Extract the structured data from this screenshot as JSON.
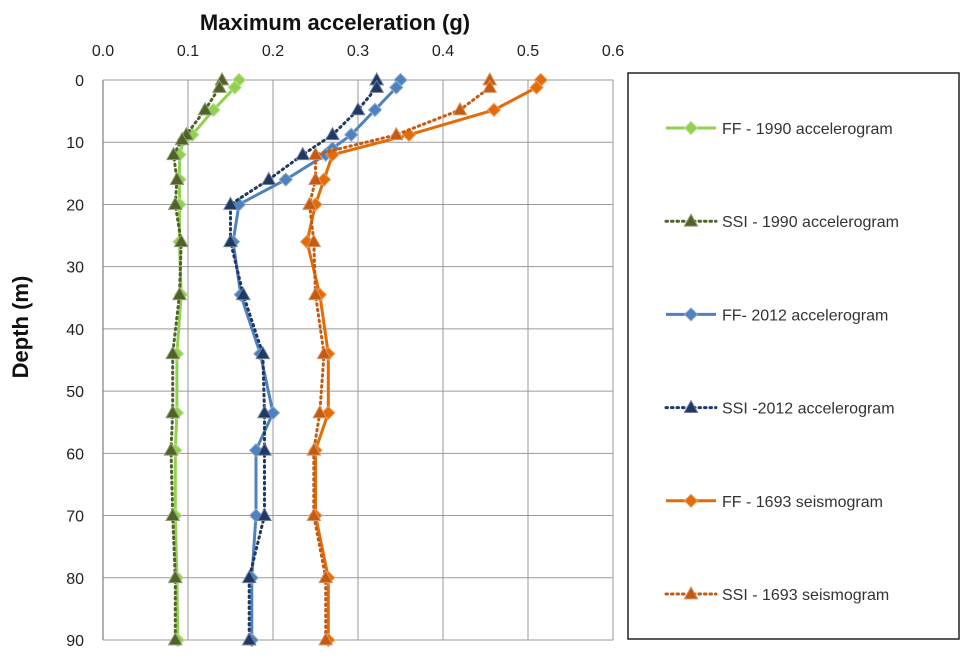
{
  "chart_data": {
    "type": "line",
    "title": "",
    "xlabel": "Maximum acceleration (g)",
    "ylabel": "Depth (m)",
    "xlim": [
      0,
      0.6
    ],
    "ylim": [
      0,
      90
    ],
    "y_inverted": true,
    "x_axis_position": "top",
    "x_ticks": [
      "0.0",
      "0.1",
      "0.2",
      "0.3",
      "0.4",
      "0.5",
      "0.6"
    ],
    "y_ticks": [
      "0",
      "10",
      "20",
      "30",
      "40",
      "50",
      "60",
      "70",
      "80",
      "90"
    ],
    "grid": true,
    "legend_position": "right",
    "series": [
      {
        "name": "FF - 1990 accelerogram",
        "color": "#92d050",
        "line": "solid",
        "marker": "diamond",
        "points": [
          [
            0.16,
            0
          ],
          [
            0.155,
            1.2
          ],
          [
            0.13,
            4.8
          ],
          [
            0.105,
            8.8
          ],
          [
            0.095,
            9.6
          ],
          [
            0.09,
            12
          ],
          [
            0.09,
            16
          ],
          [
            0.09,
            20
          ],
          [
            0.09,
            26
          ],
          [
            0.092,
            34.5
          ],
          [
            0.087,
            44
          ],
          [
            0.087,
            53.5
          ],
          [
            0.085,
            59.5
          ],
          [
            0.085,
            70
          ],
          [
            0.087,
            80
          ],
          [
            0.088,
            90
          ]
        ]
      },
      {
        "name": "SSI - 1990 accelerogram",
        "color": "#4f6228",
        "line": "dotted",
        "marker": "triangle",
        "points": [
          [
            0.14,
            0
          ],
          [
            0.137,
            1.2
          ],
          [
            0.12,
            4.8
          ],
          [
            0.098,
            8.8
          ],
          [
            0.093,
            9.6
          ],
          [
            0.083,
            12
          ],
          [
            0.087,
            16
          ],
          [
            0.085,
            20
          ],
          [
            0.092,
            26
          ],
          [
            0.09,
            34.5
          ],
          [
            0.082,
            44
          ],
          [
            0.082,
            53.5
          ],
          [
            0.08,
            59.5
          ],
          [
            0.082,
            70
          ],
          [
            0.085,
            80
          ],
          [
            0.085,
            90
          ]
        ]
      },
      {
        "name": "FF- 2012 accelerogram",
        "color": "#4f81bd",
        "line": "solid",
        "marker": "diamond",
        "points": [
          [
            0.35,
            0
          ],
          [
            0.345,
            1.2
          ],
          [
            0.32,
            4.8
          ],
          [
            0.292,
            8.8
          ],
          [
            0.27,
            11
          ],
          [
            0.262,
            12
          ],
          [
            0.215,
            16
          ],
          [
            0.16,
            20
          ],
          [
            0.153,
            26
          ],
          [
            0.162,
            34.5
          ],
          [
            0.185,
            44
          ],
          [
            0.2,
            53.5
          ],
          [
            0.18,
            59.5
          ],
          [
            0.18,
            70
          ],
          [
            0.175,
            80
          ],
          [
            0.175,
            90
          ]
        ]
      },
      {
        "name": "SSI -2012 accelerogram",
        "color": "#1f3864",
        "line": "dotted",
        "marker": "triangle",
        "points": [
          [
            0.322,
            0
          ],
          [
            0.322,
            1.2
          ],
          [
            0.3,
            4.8
          ],
          [
            0.27,
            8.8
          ],
          [
            0.235,
            12
          ],
          [
            0.195,
            16
          ],
          [
            0.15,
            20
          ],
          [
            0.15,
            26
          ],
          [
            0.165,
            34.5
          ],
          [
            0.188,
            44
          ],
          [
            0.19,
            53.5
          ],
          [
            0.19,
            59.5
          ],
          [
            0.19,
            70
          ],
          [
            0.172,
            80
          ],
          [
            0.172,
            90
          ]
        ]
      },
      {
        "name": "FF - 1693 seismogram",
        "color": "#e36c09",
        "line": "solid",
        "marker": "diamond",
        "points": [
          [
            0.515,
            0
          ],
          [
            0.51,
            1.2
          ],
          [
            0.46,
            4.8
          ],
          [
            0.36,
            8.8
          ],
          [
            0.27,
            12
          ],
          [
            0.26,
            16
          ],
          [
            0.25,
            20
          ],
          [
            0.24,
            26
          ],
          [
            0.255,
            34.5
          ],
          [
            0.265,
            44
          ],
          [
            0.265,
            53.5
          ],
          [
            0.25,
            59.5
          ],
          [
            0.25,
            70
          ],
          [
            0.265,
            80
          ],
          [
            0.265,
            90
          ]
        ]
      },
      {
        "name": "SSI - 1693 seismogram",
        "color": "#c55a11",
        "line": "dotted",
        "marker": "triangle",
        "points": [
          [
            0.455,
            0
          ],
          [
            0.455,
            1.2
          ],
          [
            0.42,
            4.8
          ],
          [
            0.345,
            8.8
          ],
          [
            0.25,
            12
          ],
          [
            0.25,
            16
          ],
          [
            0.243,
            20
          ],
          [
            0.248,
            26
          ],
          [
            0.25,
            34.5
          ],
          [
            0.26,
            44
          ],
          [
            0.255,
            53.5
          ],
          [
            0.248,
            59.5
          ],
          [
            0.248,
            70
          ],
          [
            0.262,
            80
          ],
          [
            0.262,
            90
          ]
        ]
      }
    ]
  }
}
